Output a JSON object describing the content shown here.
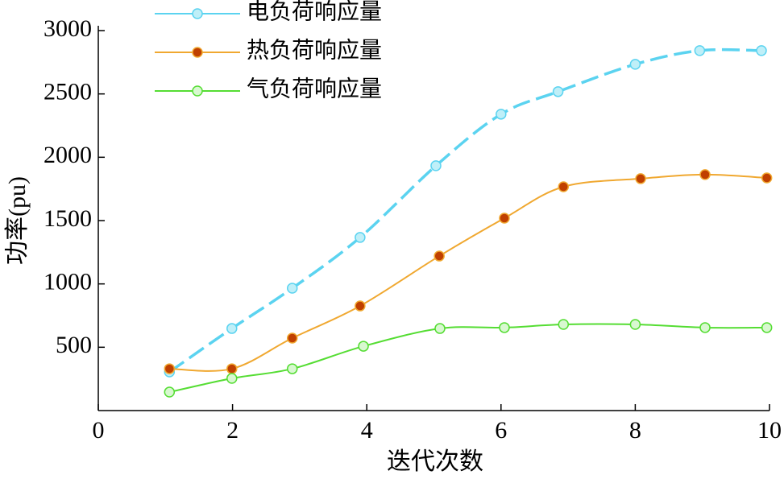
{
  "chart_data": {
    "type": "line",
    "xlabel": "迭代次数",
    "ylabel": "功率(pu)",
    "xlim": [
      0,
      10
    ],
    "xticks": [
      0,
      2,
      4,
      6,
      8,
      10
    ],
    "ylim": [
      0,
      3000
    ],
    "yticks": [
      500,
      1000,
      1500,
      2000,
      2500,
      3000
    ],
    "legend": "top-left",
    "series": [
      {
        "name": "电负荷响应量",
        "color": "#5bd3f0",
        "marker_fill": "#bfeff8",
        "dashed": true,
        "x": [
          1.06,
          1.99,
          2.89,
          3.9,
          5.03,
          6.0,
          6.85,
          8.0,
          8.96,
          9.88
        ],
        "values": [
          305,
          648,
          966,
          1367,
          1933,
          2340,
          2518,
          2734,
          2842,
          2842
        ]
      },
      {
        "name": "热负荷响应量",
        "color": "#f0a830",
        "marker_fill": "#c04000",
        "dashed": false,
        "x": [
          1.06,
          1.99,
          2.89,
          3.9,
          5.08,
          6.05,
          6.93,
          8.08,
          9.04,
          9.96
        ],
        "values": [
          330,
          330,
          572,
          826,
          1220,
          1519,
          1767,
          1831,
          1863,
          1837
        ]
      },
      {
        "name": "气负荷响应量",
        "color": "#55dd33",
        "marker_fill": "#d8f8d0",
        "dashed": false,
        "x": [
          1.06,
          1.99,
          2.89,
          3.95,
          5.09,
          6.05,
          6.93,
          8.0,
          9.04,
          9.96
        ],
        "values": [
          146,
          254,
          330,
          508,
          648,
          655,
          680,
          680,
          655,
          655
        ]
      }
    ]
  }
}
